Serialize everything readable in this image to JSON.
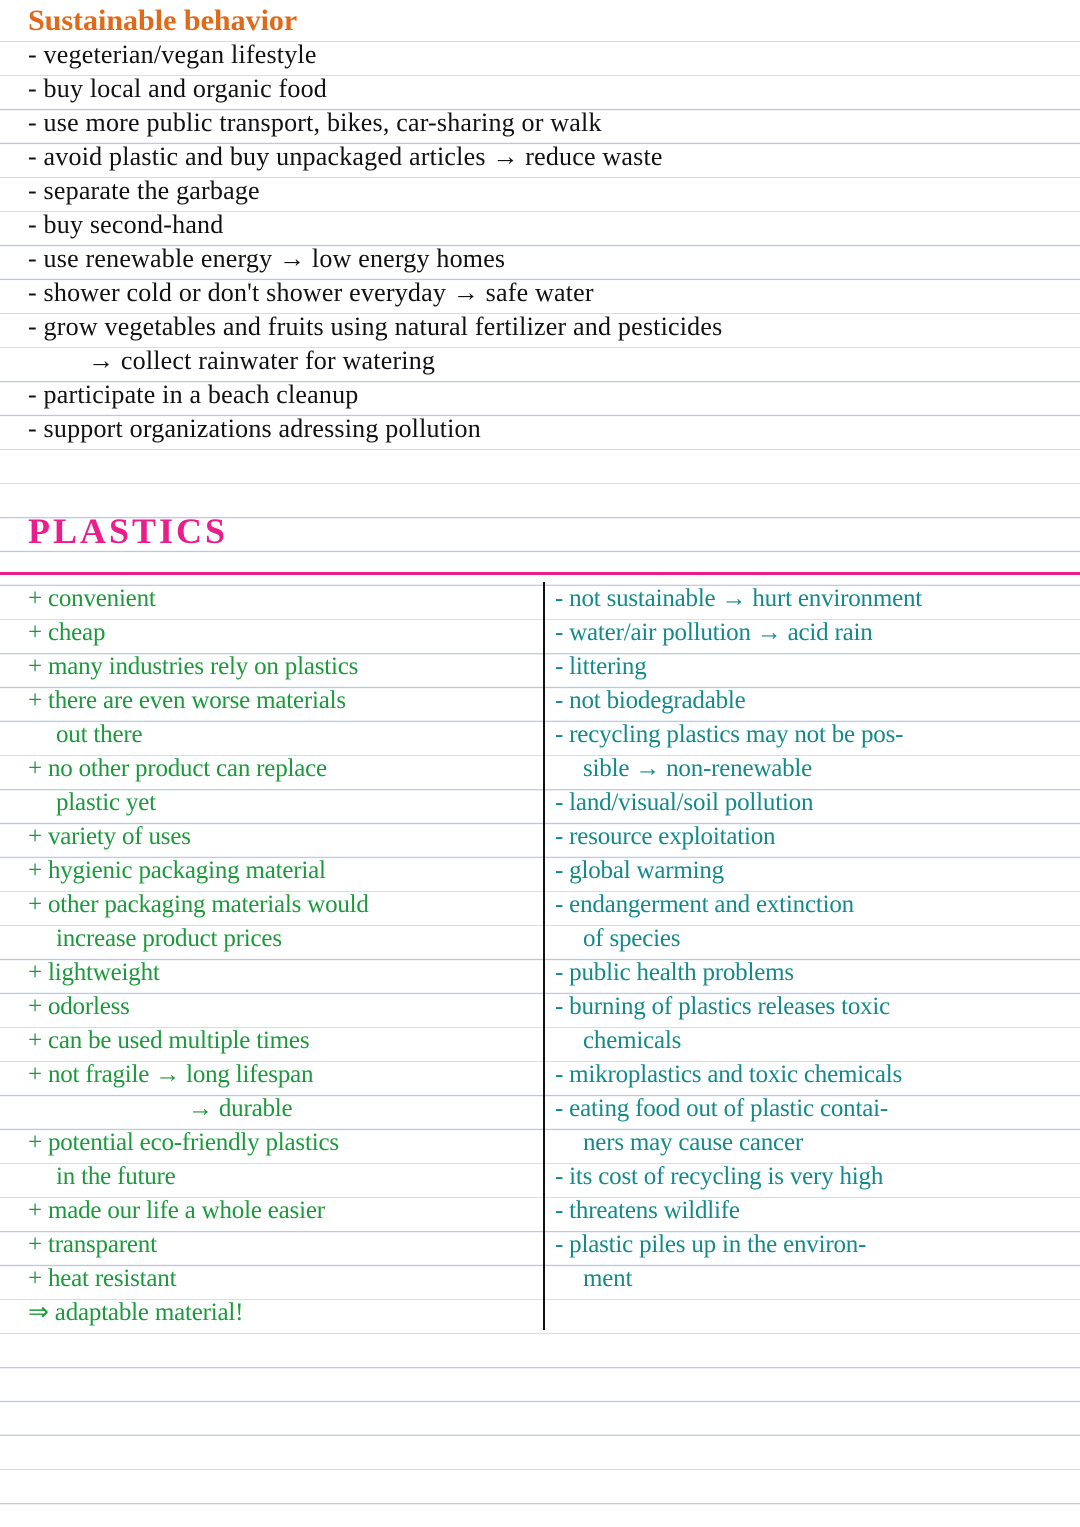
{
  "colors": {
    "rule_line": "#b8c8e0",
    "orange": "#e06a1a",
    "black": "#111111",
    "pink": "#e91e8c",
    "green": "#1a9a3a",
    "teal": "#128a8a",
    "divider": "#111111",
    "background": "#ffffff"
  },
  "typography": {
    "font_family": "Segoe Script / Comic Sans (handwriting)",
    "title1_fontsize": 30,
    "title2_fontsize": 36,
    "body_fontsize": 26,
    "table_fontsize": 25,
    "line_height": 34
  },
  "section1": {
    "title": "Sustainable behavior",
    "items": [
      "- vegeterian/vegan lifestyle",
      "- buy local and organic food",
      "- use more public transport, bikes, car-sharing or walk",
      "- avoid plastic and buy unpackaged articles → reduce waste",
      "- separate the garbage",
      "- buy second-hand",
      "- use renewable energy → low energy homes",
      "- shower cold or don't shower everyday → safe water",
      "- grow vegetables and fruits using natural fertilizer and pesticides",
      "→ collect rainwater for watering",
      "- participate in a beach cleanup",
      "- support organizations adressing pollution"
    ],
    "indent_indices": [
      9
    ]
  },
  "section2": {
    "title": "PLASTICS",
    "pros": [
      "+ convenient",
      "+ cheap",
      "+ many industries rely on plastics",
      "+ there are even worse materials",
      "out there",
      "+ no other product can replace",
      "plastic yet",
      "+ variety of uses",
      "+ hygienic packaging material",
      "+ other packaging materials would",
      "increase product prices",
      "+ lightweight",
      "+ odorless",
      "+ can be used multiple times",
      "+ not fragile → long lifespan",
      "→ durable",
      "+ potential eco-friendly plastics",
      "in the future",
      "+ made our life a whole easier",
      "+ transparent",
      "+ heat resistant",
      "⇒ adaptable material!"
    ],
    "pros_indent1": [
      4,
      6,
      10,
      17
    ],
    "pros_indent2": [
      15
    ],
    "cons": [
      "- not sustainable → hurt environment",
      "- water/air pollution → acid rain",
      "- littering",
      "- not biodegradable",
      "- recycling plastics may not be pos-",
      "sible → non-renewable",
      "- land/visual/soil pollution",
      "- resource exploitation",
      "- global warming",
      "- endangerment and extinction",
      "of species",
      "- public health problems",
      "- burning of plastics releases toxic",
      "chemicals",
      "- mikroplastics and toxic chemicals",
      "- eating food out of plastic contai-",
      "ners may cause cancer",
      "- its cost of recycling is very high",
      "- threatens wildlife",
      "- plastic piles up in the environ-",
      "ment"
    ],
    "cons_indent1": [
      5,
      10,
      13,
      16,
      20
    ]
  }
}
